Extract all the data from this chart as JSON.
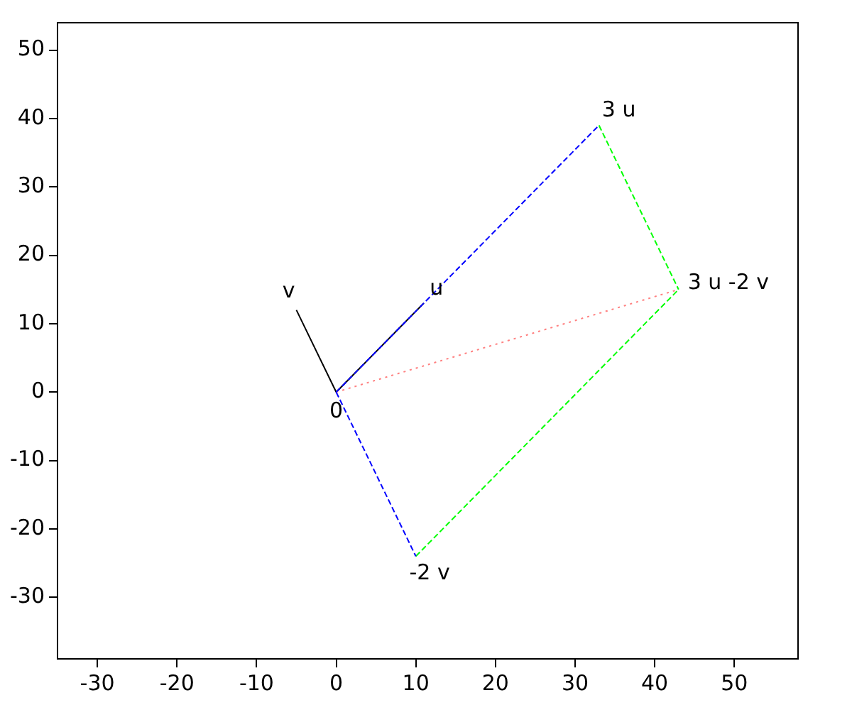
{
  "chart_data": {
    "type": "line",
    "xlim": [
      -35,
      58
    ],
    "ylim": [
      -39,
      54
    ],
    "xticks": [
      -30,
      -20,
      -10,
      0,
      10,
      20,
      30,
      40,
      50
    ],
    "yticks": [
      -30,
      -20,
      -10,
      0,
      10,
      20,
      30,
      40,
      50
    ],
    "marker": "none",
    "grid": false,
    "legend": false,
    "series": [
      {
        "color": "#0000ff",
        "line_style": "dashed",
        "x": [
          0,
          33
        ],
        "values": [
          0,
          39
        ]
      },
      {
        "color": "#0000ff",
        "line_style": "dashed",
        "x": [
          0,
          10
        ],
        "values": [
          0,
          -24
        ]
      },
      {
        "color": "#00ff00",
        "line_style": "dashed",
        "x": [
          33,
          43
        ],
        "values": [
          39,
          15
        ]
      },
      {
        "color": "#00ff00",
        "line_style": "dashed",
        "x": [
          10,
          43
        ],
        "values": [
          -24,
          15
        ]
      },
      {
        "color": "#ff8080",
        "line_style": "dotted",
        "x": [
          0,
          43
        ],
        "values": [
          0,
          15
        ]
      },
      {
        "color": "#000000",
        "line_style": "solid",
        "x": [
          0,
          11
        ],
        "values": [
          0,
          13
        ]
      },
      {
        "color": "#000000",
        "line_style": "solid",
        "x": [
          0,
          -5
        ],
        "values": [
          0,
          12
        ]
      }
    ],
    "annotations": [
      {
        "text": "0",
        "x": 0,
        "y": 0
      },
      {
        "text": "u",
        "x": 11,
        "y": 13
      },
      {
        "text": "v",
        "x": -5,
        "y": 12
      },
      {
        "text": "3 u",
        "x": 33,
        "y": 39
      },
      {
        "text": "-2 v",
        "x": 10,
        "y": -24
      },
      {
        "text": "3 u -2 v",
        "x": 43,
        "y": 15
      }
    ]
  }
}
